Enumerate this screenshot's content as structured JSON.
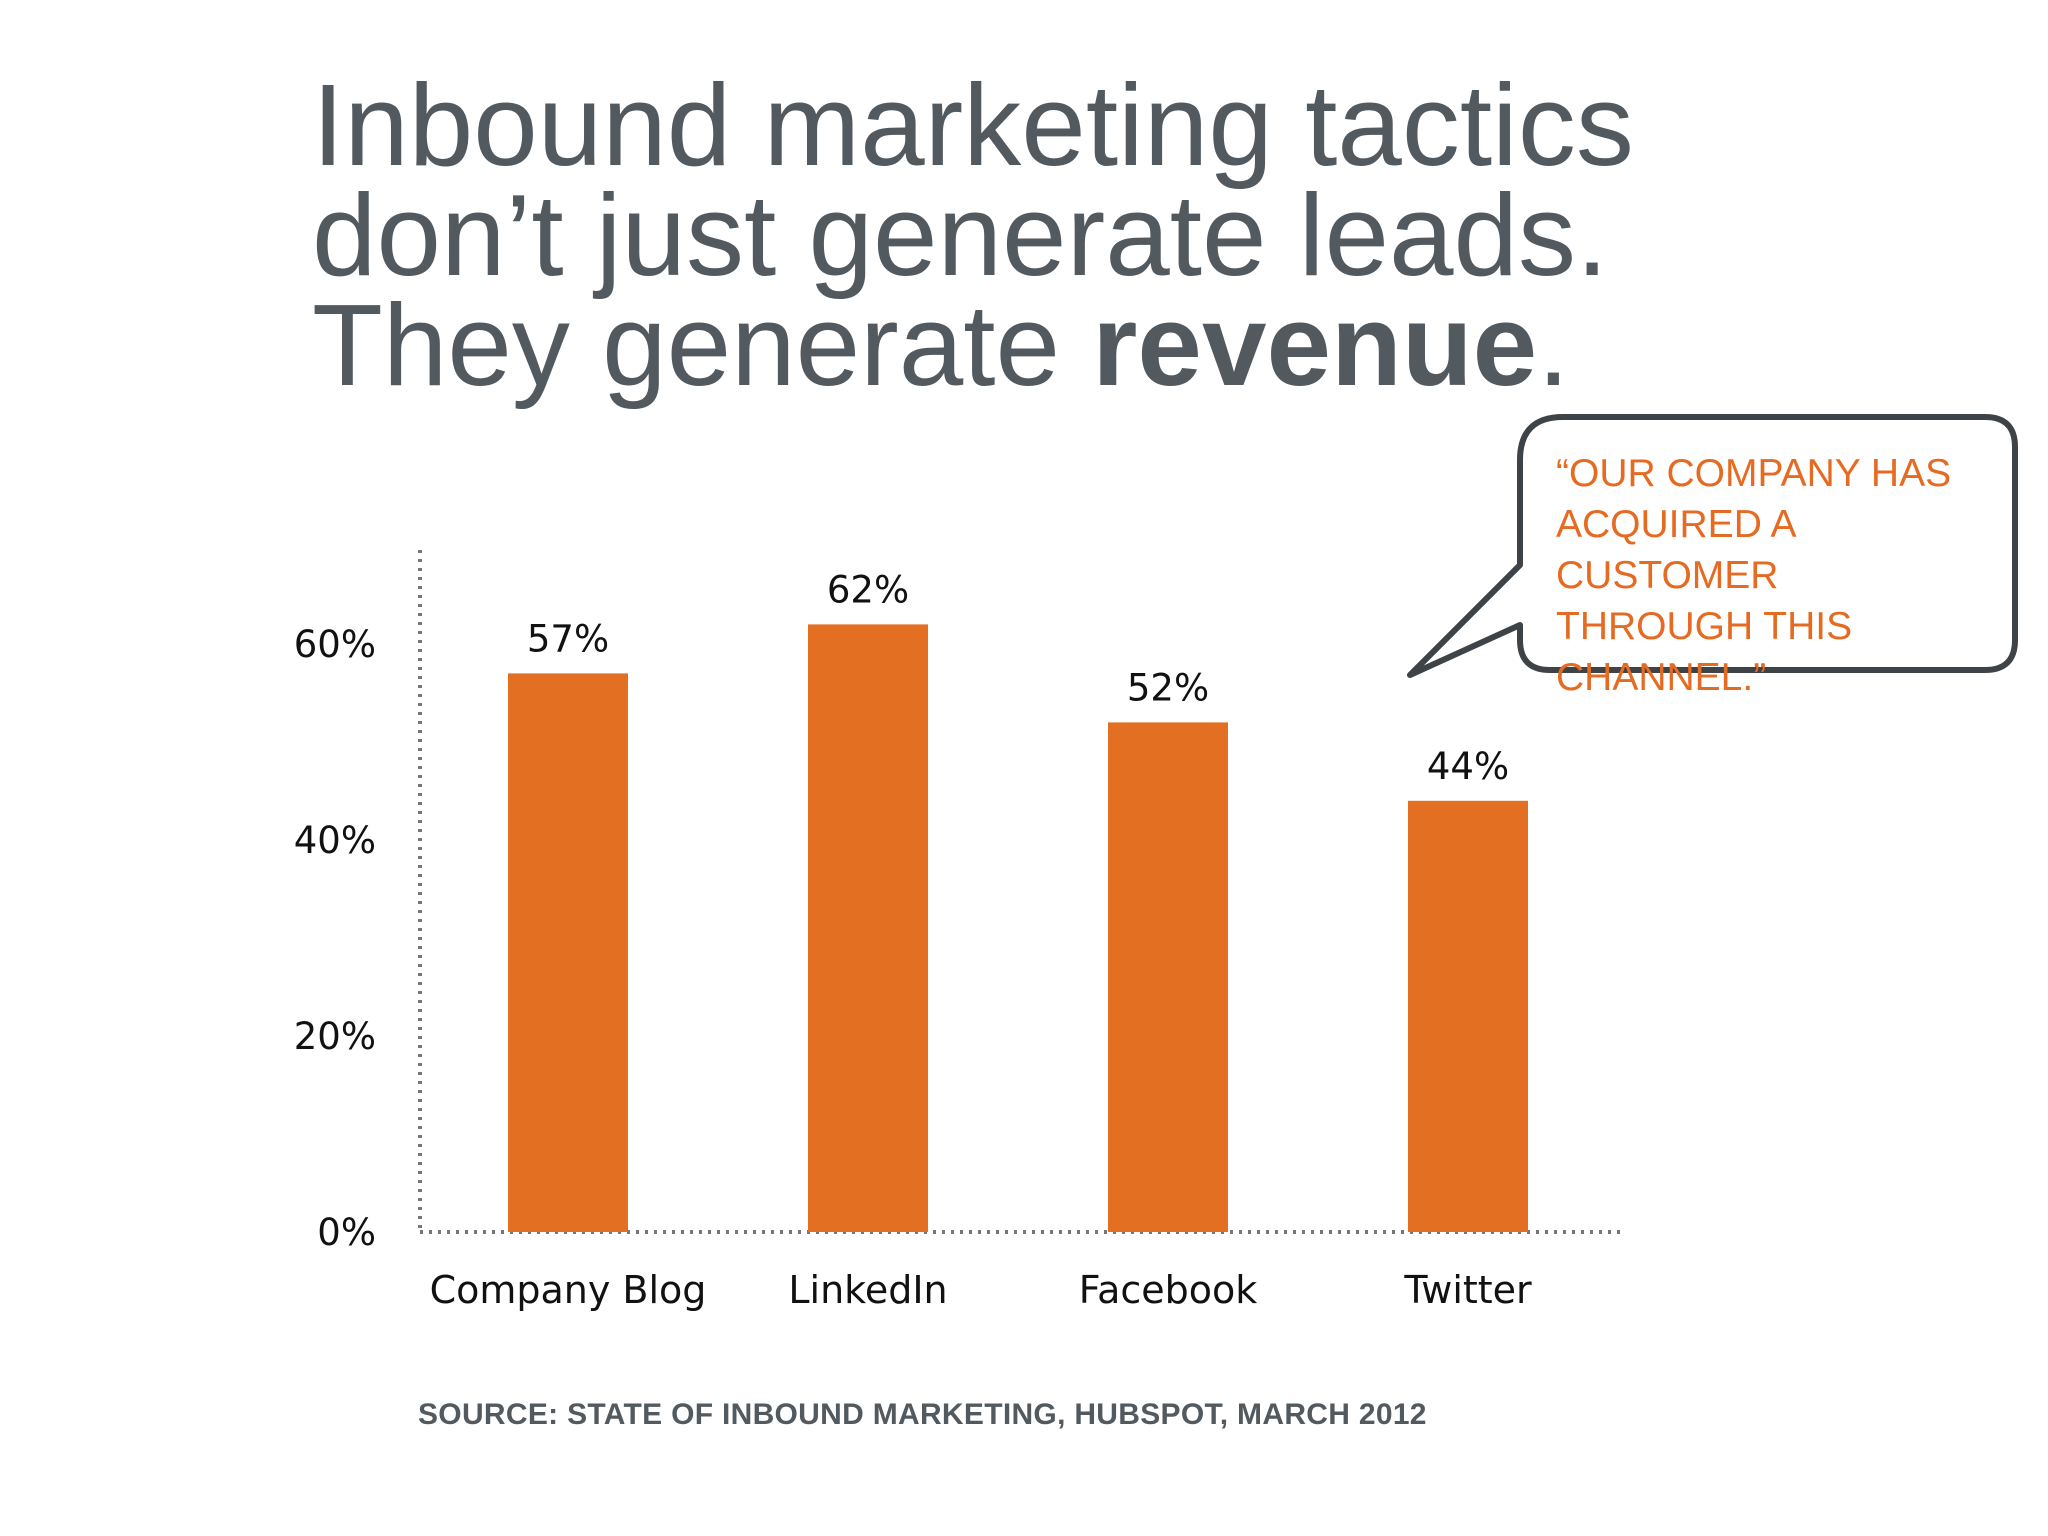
{
  "title": {
    "line1": "Inbound marketing tactics",
    "line2": "don’t just generate leads.",
    "line3_prefix": "They generate ",
    "line3_bold": "revenue",
    "line3_suffix": "."
  },
  "callout": {
    "lines": [
      "“OUR COMPANY HAS",
      "ACQUIRED A CUSTOMER",
      "THROUGH THIS",
      "CHANNEL.”"
    ]
  },
  "source": "SOURCE: STATE OF INBOUND MARKETING, HUBSPOT, MARCH 2012",
  "colors": {
    "bar": "#e36f22",
    "text_gray": "#525a60",
    "callout_text": "#e66b22"
  },
  "chart_data": {
    "type": "bar",
    "categories": [
      "Company Blog",
      "LinkedIn",
      "Facebook",
      "Twitter"
    ],
    "values": [
      57,
      62,
      52,
      44
    ],
    "value_labels": [
      "57%",
      "62%",
      "52%",
      "44%"
    ],
    "yticks": [
      0,
      20,
      40,
      60
    ],
    "ytick_labels": [
      "0%",
      "20%",
      "40%",
      "60%"
    ],
    "ylim": [
      0,
      70
    ],
    "title": "",
    "xlabel": "",
    "ylabel": "",
    "grid": false,
    "legend": "none"
  }
}
